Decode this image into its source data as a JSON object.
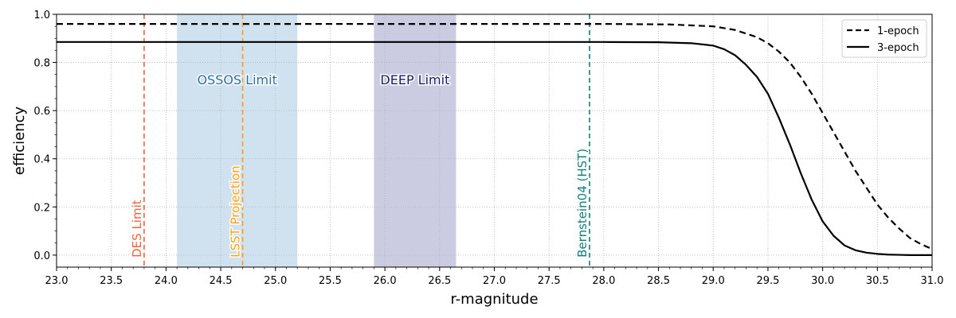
{
  "chart_data": {
    "type": "line",
    "xlabel": "r-magnitude",
    "ylabel": "efficiency",
    "xlim": [
      23.0,
      31.0
    ],
    "ylim": [
      -0.05,
      1.0
    ],
    "x_ticks": [
      23.0,
      23.5,
      24.0,
      24.5,
      25.0,
      25.5,
      26.0,
      26.5,
      27.0,
      27.5,
      28.0,
      28.5,
      29.0,
      29.5,
      30.0,
      30.5,
      31.0
    ],
    "x_tick_labels": [
      "23.0",
      "23.5",
      "24.0",
      "24.5",
      "25.0",
      "25.5",
      "26.0",
      "26.5",
      "27.0",
      "27.5",
      "28.0",
      "28.5",
      "29.0",
      "29.5",
      "30.0",
      "30.5",
      "31.0"
    ],
    "y_ticks": [
      0.0,
      0.2,
      0.4,
      0.6,
      0.8,
      1.0
    ],
    "y_tick_labels": [
      "0.0",
      "0.2",
      "0.4",
      "0.6",
      "0.8",
      "1.0"
    ],
    "grid": true,
    "legend_position": "top-right",
    "series": [
      {
        "name": "1-epoch",
        "style": "dashed",
        "color": "#000000",
        "x": [
          23.0,
          28.0,
          28.6,
          29.0,
          29.2,
          29.4,
          29.5,
          29.6,
          29.7,
          29.8,
          29.9,
          30.0,
          30.1,
          30.2,
          30.3,
          30.4,
          30.5,
          30.6,
          30.7,
          30.8,
          30.9,
          31.0
        ],
        "y": [
          0.96,
          0.96,
          0.958,
          0.95,
          0.935,
          0.905,
          0.88,
          0.845,
          0.8,
          0.74,
          0.67,
          0.59,
          0.51,
          0.43,
          0.35,
          0.28,
          0.21,
          0.155,
          0.11,
          0.07,
          0.045,
          0.025
        ]
      },
      {
        "name": "3-epoch",
        "style": "solid",
        "color": "#000000",
        "x": [
          23.0,
          28.0,
          28.5,
          28.8,
          29.0,
          29.1,
          29.2,
          29.3,
          29.4,
          29.5,
          29.6,
          29.7,
          29.8,
          29.9,
          30.0,
          30.1,
          30.2,
          30.3,
          30.4,
          30.5,
          30.6,
          30.7,
          30.8,
          31.0
        ],
        "y": [
          0.885,
          0.885,
          0.884,
          0.88,
          0.87,
          0.855,
          0.83,
          0.79,
          0.74,
          0.67,
          0.57,
          0.46,
          0.34,
          0.23,
          0.14,
          0.08,
          0.04,
          0.02,
          0.01,
          0.005,
          0.002,
          0.001,
          0.0,
          0.0
        ]
      }
    ],
    "vlines": [
      {
        "label": "DES Limit",
        "x": 23.8,
        "color": "#f4613e"
      },
      {
        "label": "LSST Projection",
        "x": 24.7,
        "color": "#ff9f0f"
      },
      {
        "label": "Bernstein04 (HST)",
        "x": 27.87,
        "color": "#0f7f7a"
      }
    ],
    "regions": [
      {
        "label": "OSSOS Limit",
        "x_start": 24.1,
        "x_end": 25.2,
        "y_label": 0.71,
        "fill": "#a9c9e1",
        "opacity": 0.55,
        "text_color": "#2e6e9a"
      },
      {
        "label": "DEEP Limit",
        "x_start": 25.9,
        "x_end": 26.65,
        "y_label": 0.71,
        "fill": "#9898c6",
        "opacity": 0.5,
        "text_color": "#1b1b66"
      }
    ]
  }
}
